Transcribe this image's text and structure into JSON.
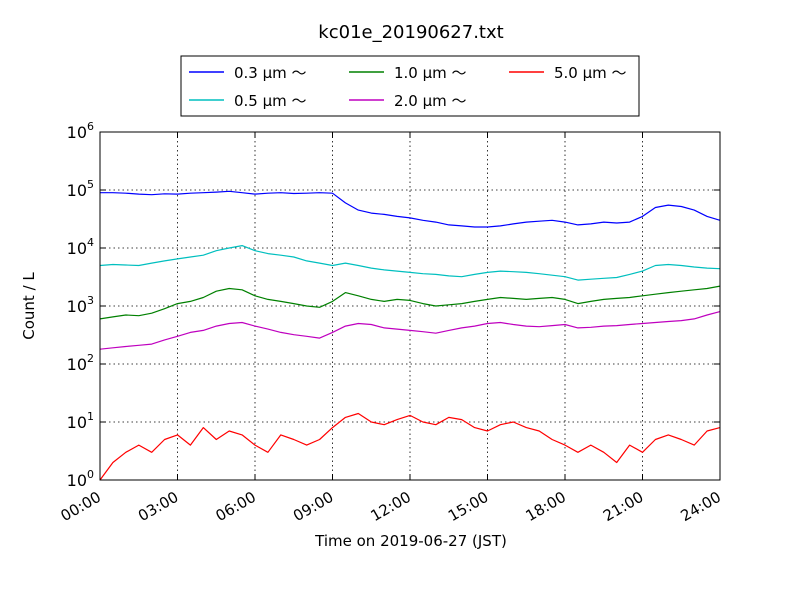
{
  "chart_data": {
    "type": "line",
    "title": "kc01e_20190627.txt",
    "xlabel": "Time on 2019-06-27 (JST)",
    "ylabel": "Count / L",
    "yscale": "log",
    "grid": true,
    "legend_position": "top-center",
    "xlim": [
      "00:00",
      "24:00"
    ],
    "xticks": [
      "00:00",
      "03:00",
      "06:00",
      "09:00",
      "12:00",
      "15:00",
      "18:00",
      "21:00",
      "24:00"
    ],
    "ylim": [
      1,
      1000000
    ],
    "yticks": [
      {
        "base": "10",
        "exp": "0"
      },
      {
        "base": "10",
        "exp": "1"
      },
      {
        "base": "10",
        "exp": "2"
      },
      {
        "base": "10",
        "exp": "3"
      },
      {
        "base": "10",
        "exp": "4"
      },
      {
        "base": "10",
        "exp": "5"
      },
      {
        "base": "10",
        "exp": "6"
      }
    ],
    "x": [
      "00:00",
      "00:30",
      "01:00",
      "01:30",
      "02:00",
      "02:30",
      "03:00",
      "03:30",
      "04:00",
      "04:30",
      "05:00",
      "05:30",
      "06:00",
      "06:30",
      "07:00",
      "07:30",
      "08:00",
      "08:30",
      "09:00",
      "09:30",
      "10:00",
      "10:30",
      "11:00",
      "11:30",
      "12:00",
      "12:30",
      "13:00",
      "13:30",
      "14:00",
      "14:30",
      "15:00",
      "15:30",
      "16:00",
      "16:30",
      "17:00",
      "17:30",
      "18:00",
      "18:30",
      "19:00",
      "19:30",
      "20:00",
      "20:30",
      "21:00",
      "21:30",
      "22:00",
      "22:30",
      "23:00",
      "23:30",
      "24:00"
    ],
    "series": [
      {
        "name": "0.3 μm ～",
        "color": "#0000ff",
        "values": [
          90000,
          90000,
          88000,
          85000,
          83000,
          86000,
          85000,
          88000,
          90000,
          92000,
          95000,
          90000,
          85000,
          88000,
          90000,
          87000,
          88000,
          90000,
          88000,
          60000,
          45000,
          40000,
          38000,
          35000,
          33000,
          30000,
          28000,
          25000,
          24000,
          23000,
          23000,
          24000,
          26000,
          28000,
          29000,
          30000,
          28000,
          25000,
          26000,
          28000,
          27000,
          28000,
          35000,
          50000,
          55000,
          52000,
          45000,
          35000,
          30000
        ]
      },
      {
        "name": "0.5 μm ～",
        "color": "#00bfbf",
        "values": [
          5000,
          5200,
          5100,
          5000,
          5500,
          6000,
          6500,
          7000,
          7500,
          9000,
          10000,
          11000,
          9000,
          8000,
          7500,
          7000,
          6000,
          5500,
          5000,
          5500,
          5000,
          4500,
          4200,
          4000,
          3800,
          3600,
          3500,
          3300,
          3200,
          3500,
          3800,
          4000,
          3900,
          3800,
          3600,
          3400,
          3200,
          2800,
          2900,
          3000,
          3100,
          3500,
          4000,
          5000,
          5200,
          5000,
          4700,
          4500,
          4400
        ]
      },
      {
        "name": "1.0 μm ～",
        "color": "#008000",
        "values": [
          600,
          650,
          700,
          680,
          750,
          900,
          1100,
          1200,
          1400,
          1800,
          2000,
          1900,
          1500,
          1300,
          1200,
          1100,
          1000,
          950,
          1200,
          1700,
          1500,
          1300,
          1200,
          1300,
          1250,
          1100,
          1000,
          1050,
          1100,
          1200,
          1300,
          1400,
          1350,
          1300,
          1350,
          1400,
          1300,
          1100,
          1200,
          1300,
          1350,
          1400,
          1500,
          1600,
          1700,
          1800,
          1900,
          2000,
          2200
        ]
      },
      {
        "name": "2.0 μm ～",
        "color": "#bf00bf",
        "values": [
          180,
          190,
          200,
          210,
          220,
          260,
          300,
          350,
          380,
          450,
          500,
          520,
          450,
          400,
          350,
          320,
          300,
          280,
          350,
          450,
          500,
          480,
          420,
          400,
          380,
          360,
          340,
          380,
          420,
          450,
          500,
          520,
          480,
          450,
          440,
          460,
          480,
          420,
          430,
          450,
          460,
          480,
          500,
          520,
          540,
          560,
          600,
          700,
          800
        ]
      },
      {
        "name": "5.0 μm ～",
        "color": "#ff0000",
        "values": [
          1,
          2,
          3,
          4,
          3,
          5,
          6,
          4,
          8,
          5,
          7,
          6,
          4,
          3,
          6,
          5,
          4,
          5,
          8,
          12,
          14,
          10,
          9,
          11,
          13,
          10,
          9,
          12,
          11,
          8,
          7,
          9,
          10,
          8,
          7,
          5,
          4,
          3,
          4,
          3,
          2,
          4,
          3,
          5,
          6,
          5,
          4,
          7,
          8
        ]
      }
    ]
  }
}
